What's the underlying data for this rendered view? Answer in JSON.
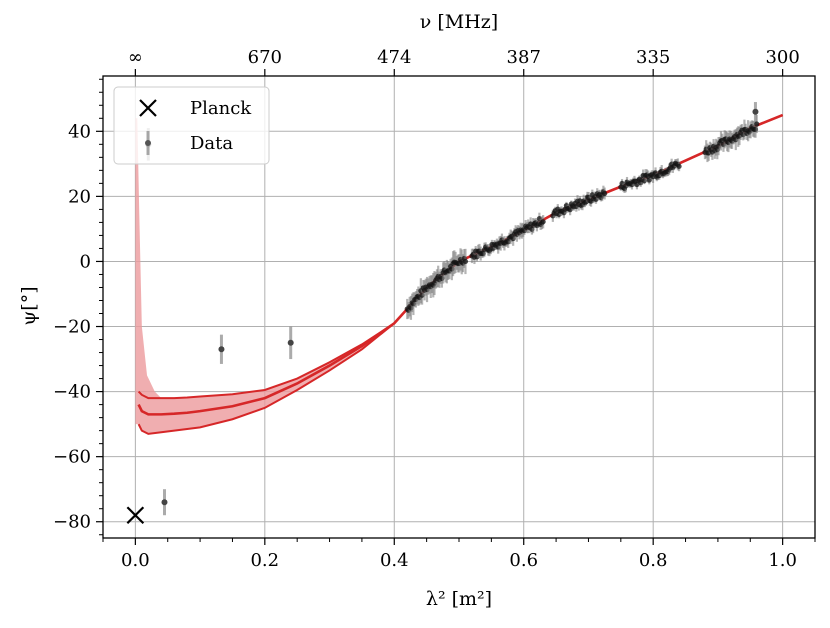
{
  "chart_data": {
    "type": "scatter",
    "title": "",
    "xlabel": "λ² [m²]",
    "ylabel": "ψ[°]",
    "xlim": [
      -0.05,
      1.05
    ],
    "ylim": [
      -85,
      57
    ],
    "grid": true,
    "x_ticks": [
      0.0,
      0.2,
      0.4,
      0.6,
      0.8,
      1.0
    ],
    "x_tick_labels": [
      "0.0",
      "0.2",
      "0.4",
      "0.6",
      "0.8",
      "1.0"
    ],
    "y_ticks": [
      -80,
      -60,
      -40,
      -20,
      0,
      20,
      40
    ],
    "y_tick_labels": [
      "−80",
      "−60",
      "−40",
      "−20",
      "0",
      "20",
      "40"
    ],
    "top_axis": {
      "label": "ν [MHz]",
      "ticks": [
        0.0,
        0.2,
        0.4,
        0.6,
        0.8,
        1.0
      ],
      "tick_labels": [
        "∞",
        "670",
        "474",
        "387",
        "335",
        "300"
      ]
    },
    "legend": {
      "placement": "top-left",
      "entries": [
        {
          "label": "Planck",
          "marker": "x",
          "color": "#000000"
        },
        {
          "label": "Data",
          "marker": "point-errorbar",
          "color": "#555555"
        }
      ]
    },
    "planck": {
      "x": 0.0,
      "y": -78
    },
    "data_points": [
      {
        "x": 0.02,
        "y": 36,
        "err": 5
      },
      {
        "x": 0.045,
        "y": -74,
        "err": 4
      },
      {
        "x": 0.133,
        "y": -27,
        "err": 4.5
      },
      {
        "x": 0.24,
        "y": -25,
        "err": 5
      },
      {
        "x": 0.958,
        "y": 46,
        "err": 3
      }
    ],
    "dense_data_segments": [
      {
        "x_range": [
          0.42,
          0.51
        ],
        "error": 3
      },
      {
        "x_range": [
          0.52,
          0.63
        ],
        "error": 1.8
      },
      {
        "x_range": [
          0.645,
          0.725
        ],
        "error": 1.5
      },
      {
        "x_range": [
          0.75,
          0.84
        ],
        "error": 1.5
      },
      {
        "x_range": [
          0.88,
          0.96
        ],
        "error": 2.5
      }
    ],
    "model": {
      "color": "#d62728",
      "band_fill": "#ec9a9c",
      "x": [
        0.005,
        0.01,
        0.02,
        0.04,
        0.06,
        0.08,
        0.1,
        0.15,
        0.2,
        0.25,
        0.3,
        0.35,
        0.4,
        0.45,
        0.5,
        0.55,
        0.6,
        0.65,
        0.7,
        0.75,
        0.8,
        0.85,
        0.9,
        0.95,
        1.0
      ],
      "median": [
        -44,
        -46,
        -47,
        -47,
        -46.8,
        -46.5,
        -46,
        -44.5,
        -42,
        -37.5,
        -32,
        -26,
        -19,
        -8,
        0,
        4.5,
        9.5,
        15,
        19,
        23,
        26.5,
        31,
        35.5,
        41,
        45
      ],
      "upper": [
        -40,
        -41,
        -42,
        -42,
        -42,
        -41.8,
        -41.5,
        -40.8,
        -39.5,
        -36,
        -31,
        -25.5,
        -19,
        -8,
        0,
        4.5,
        9.5,
        15,
        19,
        23,
        26.5,
        31,
        35.5,
        41,
        45
      ],
      "lower": [
        -50,
        -52,
        -53,
        -52.5,
        -52,
        -51.5,
        -51,
        -48.5,
        -45,
        -39.5,
        -33.5,
        -27,
        -19,
        -8,
        0,
        4.5,
        9.5,
        15,
        19,
        23,
        26.5,
        31,
        35.5,
        41,
        45
      ],
      "band_spike": [
        {
          "x": 0.003,
          "y": 44
        },
        {
          "x": 0.006,
          "y": 15
        },
        {
          "x": 0.01,
          "y": -20
        },
        {
          "x": 0.018,
          "y": -35
        },
        {
          "x": 0.03,
          "y": -40
        }
      ]
    }
  }
}
